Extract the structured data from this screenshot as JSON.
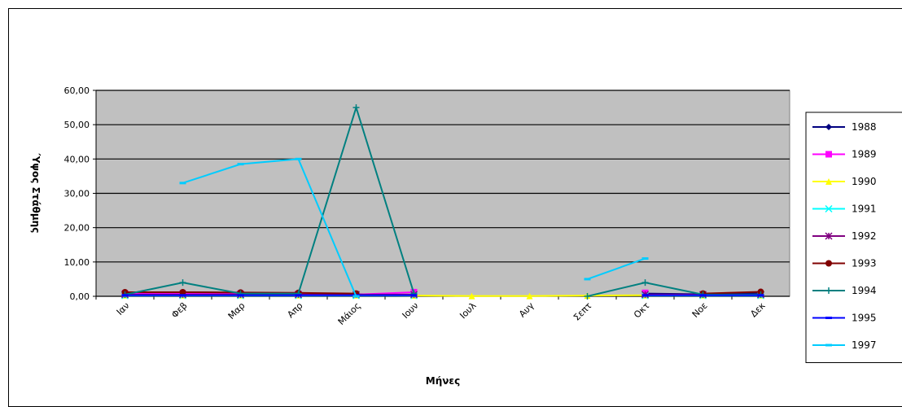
{
  "chart_data": {
    "type": "line",
    "title": "",
    "xlabel": "Μήνες",
    "ylabel": "Ύψος Στάθμης",
    "ylim": [
      0,
      60
    ],
    "yticks": [
      "0,00",
      "10,00",
      "20,00",
      "30,00",
      "40,00",
      "50,00",
      "60,00"
    ],
    "categories": [
      "Ιαν",
      "Φεβ",
      "Μαρ",
      "Απρ",
      "Μάιος",
      "Ιουν",
      "Ιουλ",
      "Αυγ",
      "Σεπτ",
      "Οκτ",
      "Νοε",
      "Δεκ"
    ],
    "grid": true,
    "plot_background": "#c0c0c0",
    "legend_position": "right",
    "series": [
      {
        "name": "1988",
        "color": "#000080",
        "marker": "diamond",
        "values": [
          1.0,
          1.2,
          1.0,
          0.8,
          0.6,
          0.4,
          null,
          null,
          null,
          0.8,
          0.6,
          1.0
        ]
      },
      {
        "name": "1989",
        "color": "#ff00ff",
        "marker": "square",
        "values": [
          0.8,
          0.8,
          0.8,
          0.7,
          0.5,
          1.2,
          null,
          null,
          null,
          1.0,
          null,
          null
        ]
      },
      {
        "name": "1990",
        "color": "#ffff00",
        "marker": "triangle",
        "values": [
          0.3,
          0.3,
          0.3,
          0.3,
          0.3,
          0.2,
          0.1,
          0.1,
          0.2,
          0.3,
          0.3,
          0.3
        ]
      },
      {
        "name": "1991",
        "color": "#00ffff",
        "marker": "x",
        "values": [
          0.2,
          0.2,
          0.2,
          0.2,
          0.2,
          0.2,
          null,
          null,
          null,
          0.2,
          0.2,
          0.2
        ]
      },
      {
        "name": "1992",
        "color": "#800080",
        "marker": "star",
        "values": [
          0.5,
          0.5,
          0.5,
          0.5,
          0.5,
          0.5,
          null,
          null,
          null,
          0.5,
          0.5,
          0.5
        ]
      },
      {
        "name": "1993",
        "color": "#800000",
        "marker": "circle",
        "values": [
          1.2,
          1.2,
          1.1,
          1.0,
          0.8,
          null,
          null,
          null,
          null,
          null,
          0.8,
          1.3
        ]
      },
      {
        "name": "1994",
        "color": "#008080",
        "marker": "plus",
        "values": [
          0.5,
          4.0,
          0.8,
          0.8,
          55.0,
          0.8,
          null,
          null,
          0.0,
          4.0,
          0.5,
          0.5
        ]
      },
      {
        "name": "1995",
        "color": "#0000ff",
        "marker": "dash",
        "values": [
          0.3,
          0.3,
          0.3,
          0.3,
          0.3,
          0.3,
          null,
          null,
          null,
          0.3,
          0.3,
          0.3
        ]
      },
      {
        "name": "1997",
        "color": "#00ccff",
        "marker": "dash",
        "values": [
          null,
          33.0,
          38.5,
          40.0,
          0.0,
          null,
          null,
          null,
          5.0,
          11.0,
          null,
          null
        ]
      }
    ]
  }
}
